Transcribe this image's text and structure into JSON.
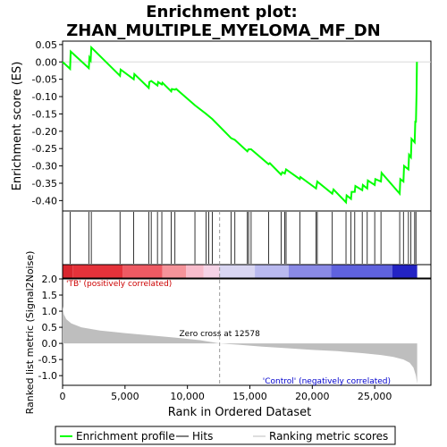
{
  "chart_data": {
    "type": "line",
    "title_line1": "Enrichment plot:",
    "title_line2": "ZHAN_MULTIPLE_MYELOMA_MF_DN",
    "es_panel": {
      "ylabel": "Enrichment score (ES)",
      "ylim": [
        -0.43,
        0.06
      ],
      "yticks": [
        0.05,
        0.0,
        -0.05,
        -0.1,
        -0.15,
        -0.2,
        -0.25,
        -0.3,
        -0.35,
        -0.4
      ],
      "ytick_labels": [
        "0.05",
        "0.00",
        "-0.05",
        "-0.10",
        "-0.15",
        "-0.20",
        "-0.25",
        "-0.30",
        "-0.35",
        "-0.40"
      ],
      "curve_color": "#00ff00",
      "es_points": [
        [
          0,
          0.0
        ],
        [
          600,
          -0.02
        ],
        [
          650,
          0.03
        ],
        [
          2100,
          -0.018
        ],
        [
          2150,
          0.012
        ],
        [
          2250,
          0.005
        ],
        [
          2300,
          0.042
        ],
        [
          4600,
          -0.04
        ],
        [
          4650,
          -0.022
        ],
        [
          5700,
          -0.05
        ],
        [
          5750,
          -0.035
        ],
        [
          6900,
          -0.075
        ],
        [
          6950,
          -0.058
        ],
        [
          7100,
          -0.055
        ],
        [
          7600,
          -0.068
        ],
        [
          7650,
          -0.058
        ],
        [
          7950,
          -0.065
        ],
        [
          8000,
          -0.06
        ],
        [
          8700,
          -0.085
        ],
        [
          8750,
          -0.078
        ],
        [
          9000,
          -0.08
        ],
        [
          9100,
          -0.078
        ],
        [
          10600,
          -0.125
        ],
        [
          11500,
          -0.15
        ],
        [
          12000,
          -0.165
        ],
        [
          13500,
          -0.22
        ],
        [
          13800,
          -0.225
        ],
        [
          14800,
          -0.258
        ],
        [
          14900,
          -0.252
        ],
        [
          15100,
          -0.252
        ],
        [
          16500,
          -0.295
        ],
        [
          16600,
          -0.292
        ],
        [
          17500,
          -0.325
        ],
        [
          17600,
          -0.318
        ],
        [
          17800,
          -0.322
        ],
        [
          17900,
          -0.31
        ],
        [
          19000,
          -0.338
        ],
        [
          19050,
          -0.332
        ],
        [
          20300,
          -0.365
        ],
        [
          20400,
          -0.345
        ],
        [
          21600,
          -0.38
        ],
        [
          21700,
          -0.368
        ],
        [
          22700,
          -0.405
        ],
        [
          22750,
          -0.385
        ],
        [
          23100,
          -0.395
        ],
        [
          23150,
          -0.375
        ],
        [
          23400,
          -0.375
        ],
        [
          23450,
          -0.358
        ],
        [
          24000,
          -0.37
        ],
        [
          24050,
          -0.355
        ],
        [
          24400,
          -0.365
        ],
        [
          24450,
          -0.342
        ],
        [
          25000,
          -0.355
        ],
        [
          25050,
          -0.338
        ],
        [
          25500,
          -0.345
        ],
        [
          25550,
          -0.32
        ],
        [
          27000,
          -0.38
        ],
        [
          27050,
          -0.338
        ],
        [
          27300,
          -0.345
        ],
        [
          27350,
          -0.3
        ],
        [
          27700,
          -0.31
        ],
        [
          27750,
          -0.268
        ],
        [
          27900,
          -0.275
        ],
        [
          27950,
          -0.222
        ],
        [
          28200,
          -0.232
        ],
        [
          28250,
          -0.17
        ],
        [
          28300,
          -0.175
        ],
        [
          28350,
          -0.09
        ],
        [
          28380,
          0.0
        ]
      ]
    },
    "hits": [
      600,
      2100,
      2300,
      4600,
      5700,
      6900,
      7100,
      7600,
      7950,
      8700,
      9000,
      10600,
      11500,
      11700,
      12000,
      13500,
      13800,
      14800,
      14900,
      15100,
      16500,
      17500,
      17800,
      17900,
      19000,
      20300,
      20400,
      21600,
      22700,
      23100,
      23400,
      24000,
      24400,
      25000,
      25500,
      27000,
      27300,
      27700,
      27900,
      28200,
      28300
    ],
    "colorbar": [
      {
        "from": 0,
        "to": 800,
        "color": "#d9262e"
      },
      {
        "from": 800,
        "to": 4800,
        "color": "#e5323a"
      },
      {
        "from": 4800,
        "to": 8000,
        "color": "#ee5a63"
      },
      {
        "from": 8000,
        "to": 9900,
        "color": "#f5939a"
      },
      {
        "from": 9900,
        "to": 11300,
        "color": "#f8bccc"
      },
      {
        "from": 11300,
        "to": 12578,
        "color": "#f5d3e6"
      },
      {
        "from": 12578,
        "to": 15400,
        "color": "#d9d6f2"
      },
      {
        "from": 15400,
        "to": 18100,
        "color": "#b9b9ef"
      },
      {
        "from": 18100,
        "to": 21500,
        "color": "#8a8ae6"
      },
      {
        "from": 21500,
        "to": 26400,
        "color": "#5f62de"
      },
      {
        "from": 26400,
        "to": 28400,
        "color": "#2323c4"
      }
    ],
    "metric_panel": {
      "ylabel": "Ranked list metric (Signal2Noise)",
      "ylim": [
        -1.3,
        2.0
      ],
      "yticks": [
        2.0,
        1.5,
        1.0,
        0.5,
        0.0,
        -0.5,
        -1.0
      ],
      "ytick_labels": [
        "2.0",
        "1.5",
        "1.0",
        "0.5",
        "0.0",
        "-0.5",
        "-1.0"
      ],
      "metric_curve": [
        [
          0,
          1.15
        ],
        [
          100,
          0.9
        ],
        [
          300,
          0.75
        ],
        [
          700,
          0.62
        ],
        [
          1500,
          0.5
        ],
        [
          3000,
          0.4
        ],
        [
          5000,
          0.32
        ],
        [
          7000,
          0.25
        ],
        [
          9000,
          0.18
        ],
        [
          11000,
          0.1
        ],
        [
          12578,
          0.0
        ],
        [
          14000,
          -0.04
        ],
        [
          16000,
          -0.1
        ],
        [
          18000,
          -0.15
        ],
        [
          20000,
          -0.2
        ],
        [
          22000,
          -0.24
        ],
        [
          24000,
          -0.3
        ],
        [
          25500,
          -0.36
        ],
        [
          26500,
          -0.42
        ],
        [
          27300,
          -0.5
        ],
        [
          27800,
          -0.6
        ],
        [
          28100,
          -0.75
        ],
        [
          28300,
          -1.0
        ],
        [
          28400,
          -1.25
        ]
      ],
      "fill_color": "#bebebe",
      "zero_cross_label": "Zero cross at 12578",
      "zero_cross": 12578,
      "pos_label": "'TB' (positively correlated)",
      "neg_label": "'Control' (negatively correlated)"
    },
    "xlabel": "Rank in Ordered Dataset",
    "xlim": [
      0,
      29500
    ],
    "xticks": [
      0,
      5000,
      10000,
      15000,
      20000,
      25000
    ],
    "xtick_labels": [
      "0",
      "5,000",
      "10,000",
      "15,000",
      "20,000",
      "25,000"
    ],
    "legend": [
      {
        "label": "Enrichment profile",
        "color": "#00ff00"
      },
      {
        "label": "Hits",
        "color": "#000000"
      },
      {
        "label": "Ranking metric scores",
        "color": "#bebebe"
      }
    ]
  }
}
